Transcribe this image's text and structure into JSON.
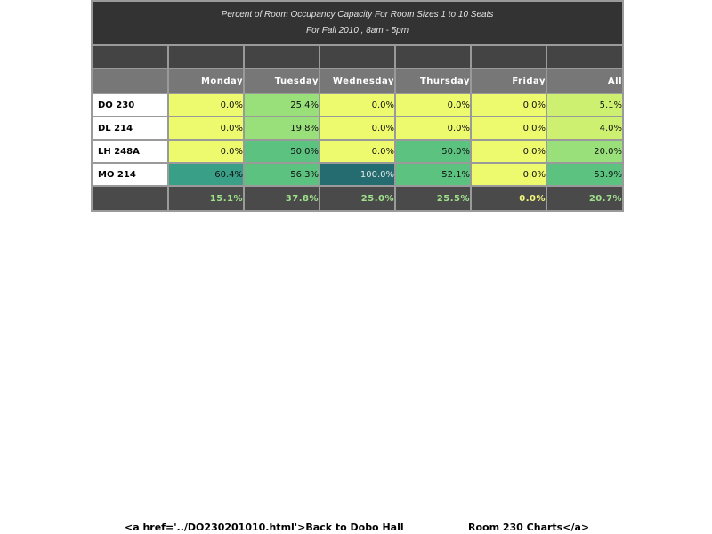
{
  "chart_data": {
    "type": "table",
    "title_line1": "Percent of Room Occupancy Capacity For Room Sizes 1 to 10 Seats",
    "title_line2": "For Fall 2010  , 8am - 5pm",
    "columns": [
      "Monday",
      "Tuesday",
      "Wednesday",
      "Thursday",
      "Friday",
      "All"
    ],
    "rows": [
      {
        "room": "DO 230",
        "labels": [
          "0.0%",
          "25.4%",
          "0.0%",
          "0.0%",
          "0.0%",
          "5.1%"
        ],
        "values": [
          0.0,
          25.4,
          0.0,
          0.0,
          0.0,
          5.1
        ]
      },
      {
        "room": "DL 214",
        "labels": [
          "0.0%",
          "19.8%",
          "0.0%",
          "0.0%",
          "0.0%",
          "4.0%"
        ],
        "values": [
          0.0,
          19.8,
          0.0,
          0.0,
          0.0,
          4.0
        ]
      },
      {
        "room": "LH 248A",
        "labels": [
          "0.0%",
          "50.0%",
          "0.0%",
          "50.0%",
          "0.0%",
          "20.0%"
        ],
        "values": [
          0.0,
          50.0,
          0.0,
          50.0,
          0.0,
          20.0
        ]
      },
      {
        "room": "MO 214",
        "labels": [
          "60.4%",
          "56.3%",
          "100.0%",
          "52.1%",
          "0.0%",
          "53.9%"
        ],
        "values": [
          60.4,
          56.3,
          100.0,
          52.1,
          0.0,
          53.9
        ]
      }
    ],
    "totals": {
      "labels": [
        "15.1%",
        "37.8%",
        "25.0%",
        "25.5%",
        "0.0%",
        "20.7%"
      ],
      "values": [
        15.1,
        37.8,
        25.0,
        25.5,
        0.0,
        20.7
      ]
    },
    "color_scale": [
      "#eefa6e",
      "#cdf070",
      "#9ae07a",
      "#5cc27f",
      "#3a9f87",
      "#246c70"
    ]
  },
  "footer": {
    "left": "<a href='../DO230201010.html'>Back to Dobo Hall",
    "right": "Room 230 Charts</a>"
  }
}
